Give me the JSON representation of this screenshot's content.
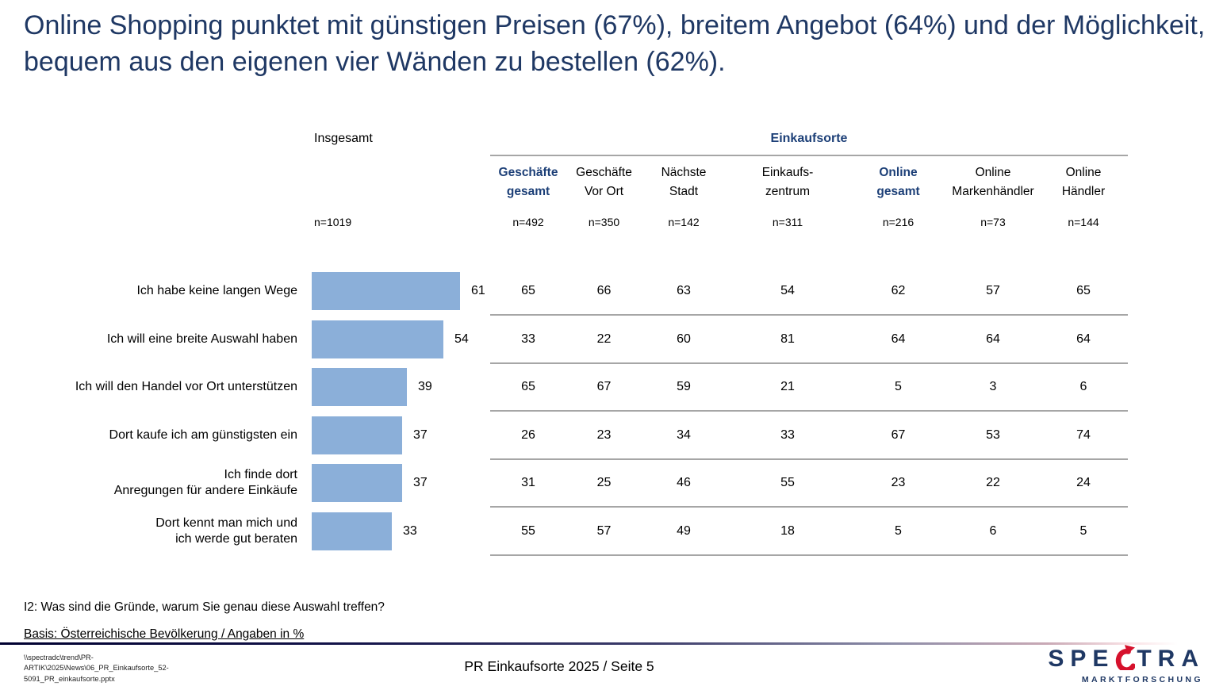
{
  "title": "Online Shopping punktet mit günstigen Preisen (67%), breitem Angebot (64%) und der Möglichkeit, bequem aus den eigenen vier Wänden zu bestellen (62%).",
  "colors": {
    "title_navy": "#1F3864",
    "header_navy": "#1C3F77",
    "bar_blue": "#8BAFD9",
    "line_grey": "#A6A6A6",
    "logo_red": "#D6112C"
  },
  "table": {
    "insgesamt_label": "Insgesamt",
    "insgesamt_n": "n=1019",
    "group_header": "Einkaufsorte",
    "columns": [
      {
        "label1": "Geschäfte",
        "label2": "gesamt",
        "n": "n=492",
        "highlight": true
      },
      {
        "label1": "Geschäfte",
        "label2": "Vor Ort",
        "n": "n=350",
        "highlight": false
      },
      {
        "label1": "Nächste",
        "label2": "Stadt",
        "n": "n=142",
        "highlight": false
      },
      {
        "label1": "Einkaufs-",
        "label2": "zentrum",
        "n": "n=311",
        "highlight": false
      },
      {
        "label1": "Online",
        "label2": "gesamt",
        "n": "n=216",
        "highlight": true
      },
      {
        "label1": "Online",
        "label2": "Markenhändler",
        "n": "n=73",
        "highlight": false
      },
      {
        "label1": "Online",
        "label2": "Händler",
        "n": "n=144",
        "highlight": false
      }
    ]
  },
  "rows": [
    {
      "label": "Ich habe keine langen Wege",
      "total": 61,
      "values": [
        65,
        66,
        63,
        54,
        62,
        57,
        65
      ]
    },
    {
      "label": "Ich will eine breite Auswahl haben",
      "total": 54,
      "values": [
        33,
        22,
        60,
        81,
        64,
        64,
        64
      ]
    },
    {
      "label": "Ich will den Handel vor Ort unterstützen",
      "total": 39,
      "values": [
        65,
        67,
        59,
        21,
        5,
        3,
        6
      ]
    },
    {
      "label": "Dort kaufe ich am günstigsten ein",
      "total": 37,
      "values": [
        26,
        23,
        34,
        33,
        67,
        53,
        74
      ]
    },
    {
      "label": "Ich finde dort\nAnregungen für andere Einkäufe",
      "total": 37,
      "values": [
        31,
        25,
        46,
        55,
        23,
        22,
        24
      ]
    },
    {
      "label": "Dort kennt man mich und\nich werde gut beraten",
      "total": 33,
      "values": [
        55,
        57,
        49,
        18,
        5,
        6,
        5
      ]
    }
  ],
  "chart_data": {
    "type": "bar",
    "orientation": "horizontal",
    "title": "Online Shopping punktet mit günstigen Preisen (67%), breitem Angebot (64%) und der Möglichkeit, bequem aus den eigenen vier Wänden zu bestellen (62%).",
    "unit": "%",
    "xlim": [
      0,
      100
    ],
    "bar_color": "#8BAFD9",
    "categories": [
      "Ich habe keine langen Wege",
      "Ich will eine breite Auswahl haben",
      "Ich will den Handel vor Ort unterstützen",
      "Dort kaufe ich am günstigsten ein",
      "Ich finde dort Anregungen für andere Einkäufe",
      "Dort kennt man mich und ich werde gut beraten"
    ],
    "series": [
      {
        "name": "Insgesamt",
        "n": 1019,
        "values": [
          61,
          54,
          39,
          37,
          37,
          33
        ]
      },
      {
        "name": "Geschäfte gesamt",
        "n": 492,
        "values": [
          65,
          33,
          65,
          26,
          31,
          55
        ]
      },
      {
        "name": "Geschäfte Vor Ort",
        "n": 350,
        "values": [
          66,
          22,
          67,
          23,
          25,
          57
        ]
      },
      {
        "name": "Nächste Stadt",
        "n": 142,
        "values": [
          63,
          60,
          59,
          34,
          46,
          49
        ]
      },
      {
        "name": "Einkaufszentrum",
        "n": 311,
        "values": [
          54,
          81,
          21,
          33,
          55,
          18
        ]
      },
      {
        "name": "Online gesamt",
        "n": 216,
        "values": [
          62,
          64,
          5,
          67,
          23,
          5
        ]
      },
      {
        "name": "Online Markenhändler",
        "n": 73,
        "values": [
          57,
          64,
          3,
          53,
          22,
          6
        ]
      },
      {
        "name": "Online Händler",
        "n": 144,
        "values": [
          65,
          64,
          6,
          74,
          24,
          5
        ]
      }
    ],
    "layout_note": "Insgesamt series drawn as horizontal bars at left; remaining series shown as numeric table columns under the Einkaufsorte header."
  },
  "footer": {
    "question": "I2: Was sind die Gründe, warum Sie genau diese Auswahl treffen?",
    "basis": "Basis: Österreichische Bevölkerung / Angaben in %",
    "file_path": "\\\\spectradc\\trend\\PR-ARTIK\\2025\\News\\06_PR_Einkaufsorte_52-5091_PR_einkaufsorte.pptx",
    "page_label": "PR Einkaufsorte 2025  /  Seite 5",
    "logo": {
      "part1": "SPE",
      "part2": "TRA",
      "subtext": "MARKTFORSCHUNG"
    }
  }
}
